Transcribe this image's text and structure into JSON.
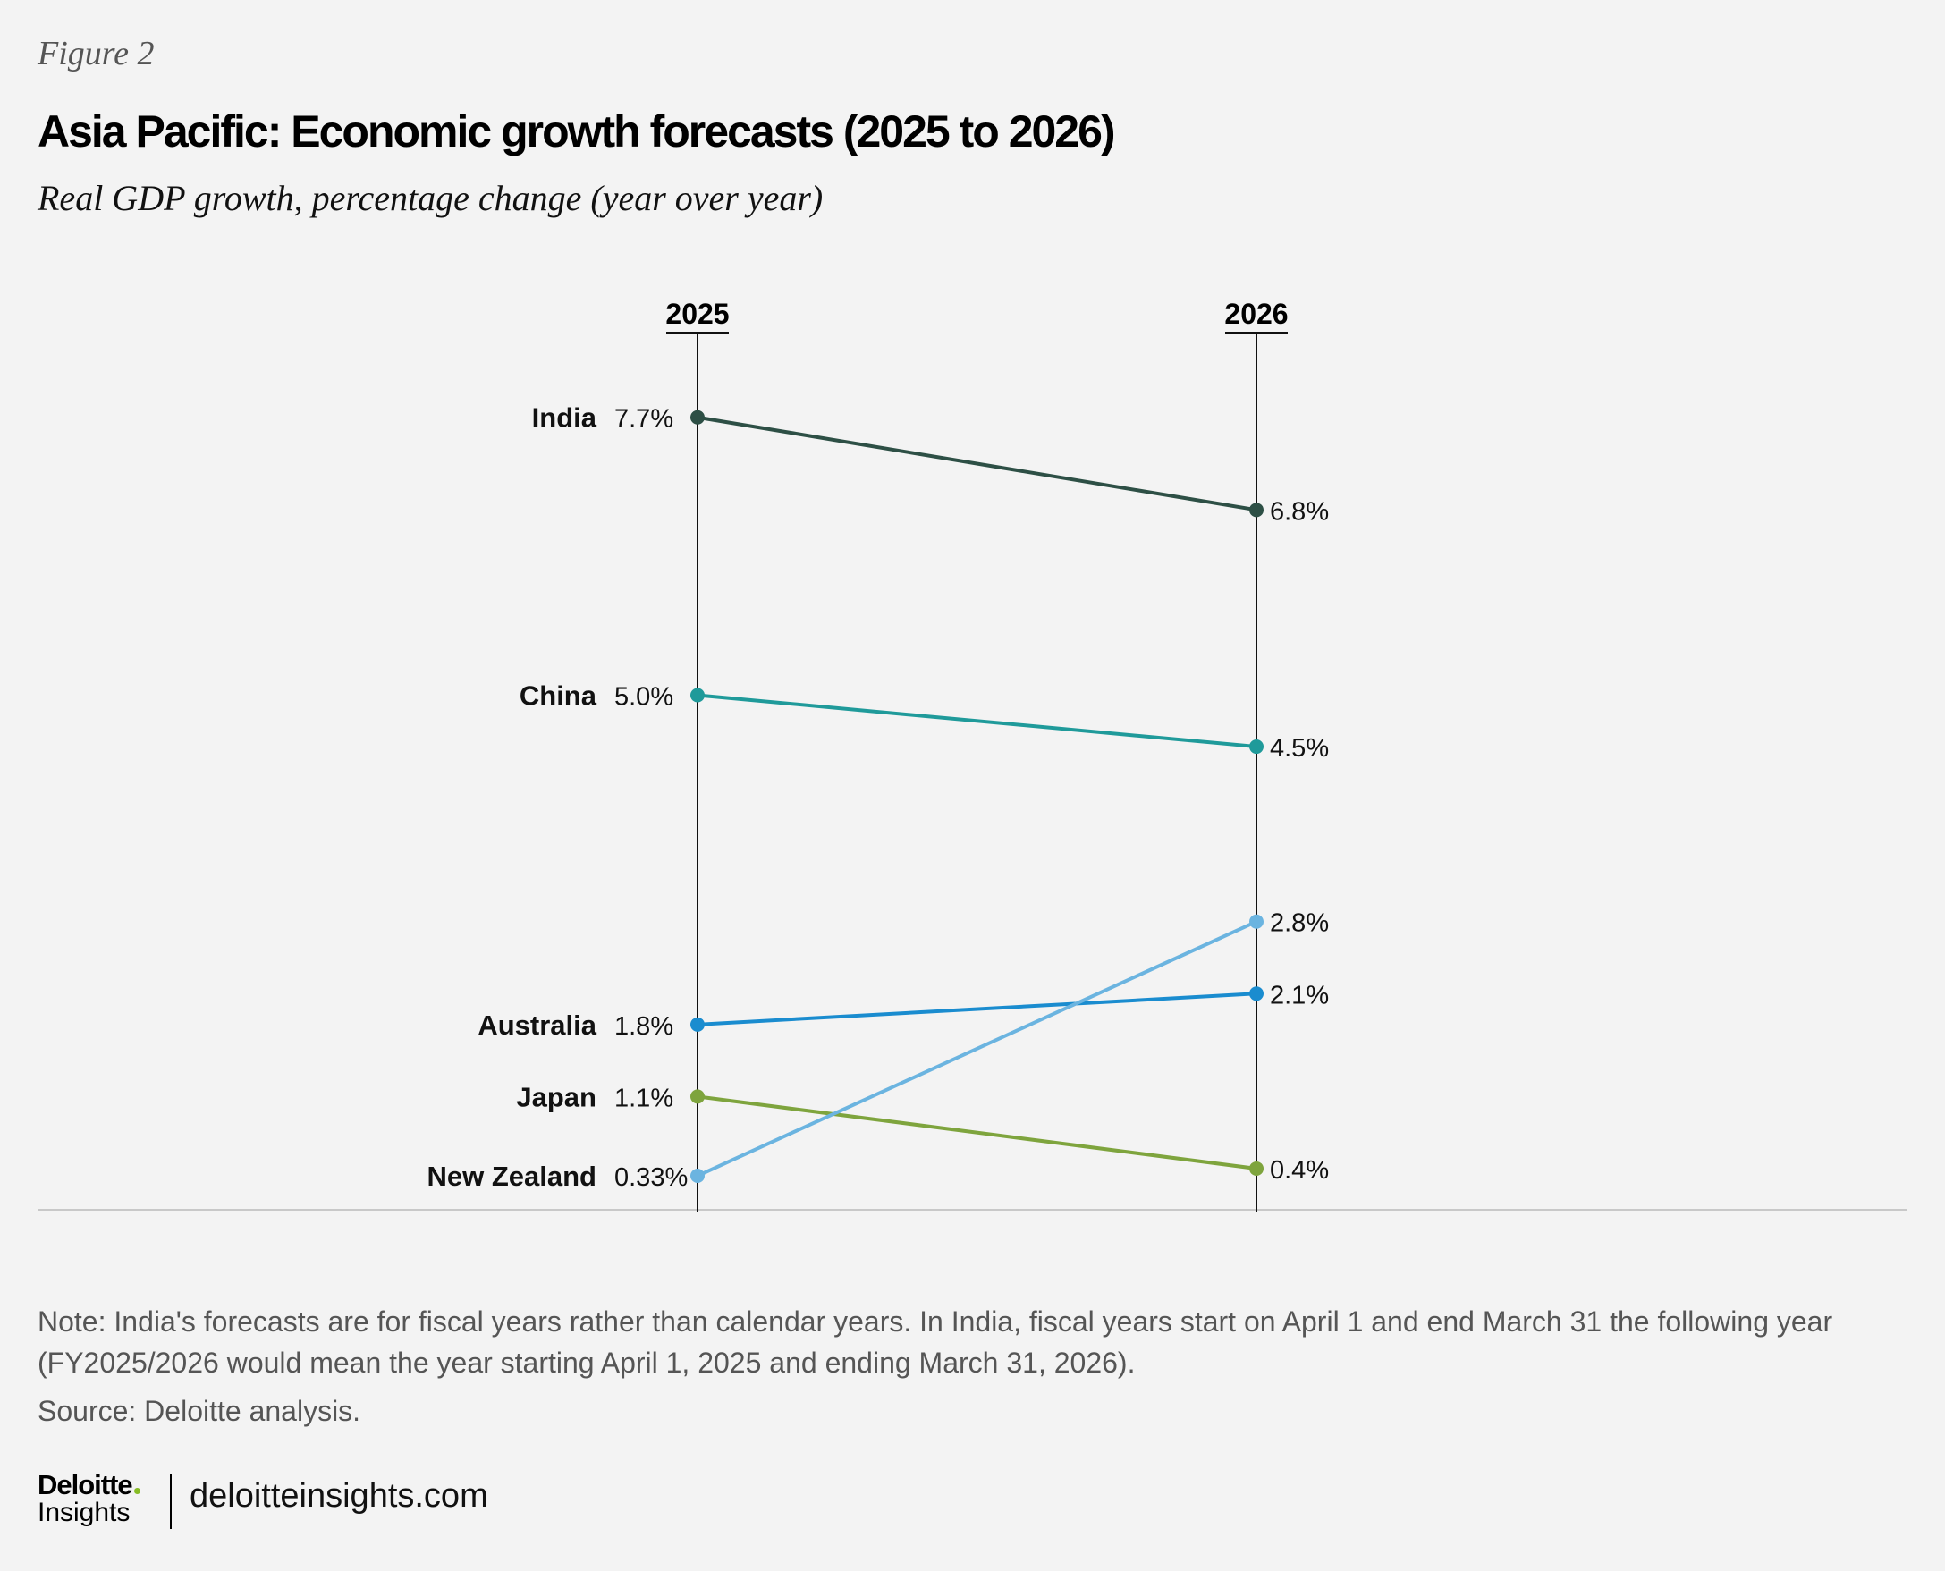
{
  "header": {
    "figure_label": "Figure 2",
    "title": "Asia Pacific: Economic growth forecasts (2025 to 2026)",
    "subtitle": "Real GDP growth, percentage change (year over year)"
  },
  "chart_data": {
    "type": "line",
    "subtype": "slope",
    "categories": [
      "2025",
      "2026"
    ],
    "ylim": [
      0,
      7.7
    ],
    "grid": false,
    "series": [
      {
        "name": "India",
        "values": [
          7.7,
          6.8
        ],
        "labels": [
          "7.7%",
          "6.8%"
        ],
        "color": "#2d4f45"
      },
      {
        "name": "China",
        "values": [
          5.0,
          4.5
        ],
        "labels": [
          "5.0%",
          "4.5%"
        ],
        "color": "#1f9a9a"
      },
      {
        "name": "Australia",
        "values": [
          1.8,
          2.1
        ],
        "labels": [
          "1.8%",
          "2.1%"
        ],
        "color": "#1a8ccf"
      },
      {
        "name": "Japan",
        "values": [
          1.1,
          0.4
        ],
        "labels": [
          "1.1%",
          "0.4%"
        ],
        "color": "#7ea43d"
      },
      {
        "name": "New Zealand",
        "values": [
          0.33,
          2.8
        ],
        "labels": [
          "0.33%",
          "2.8%"
        ],
        "color": "#6bb4e0"
      }
    ]
  },
  "footer": {
    "note": "Note: India's forecasts are for fiscal years rather than calendar years. In India, fiscal years start on April 1 and end March 31 the following year (FY2025/2026 would mean the year starting April 1, 2025 and ending March 31, 2026).",
    "source": "Source: Deloitte analysis.",
    "logo_top": "Deloitte",
    "logo_bottom": "Insights",
    "url": "deloitteinsights.com",
    "brand_dot_color": "#86bc25"
  }
}
